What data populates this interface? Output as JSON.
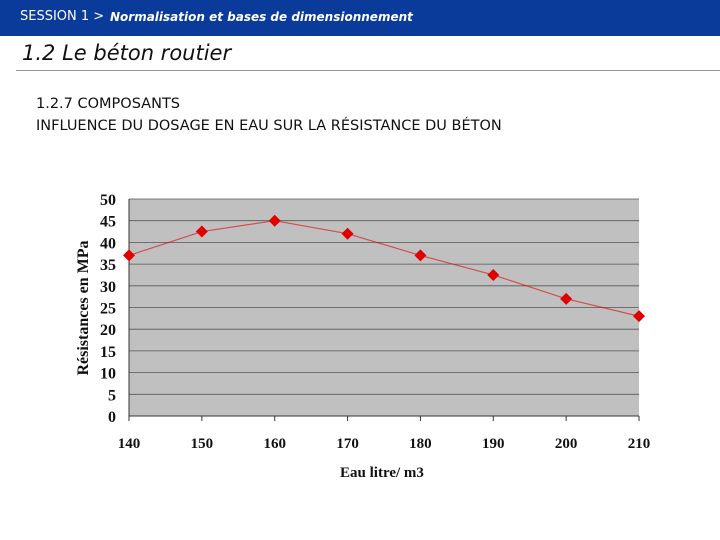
{
  "header": {
    "session": "SESSION 1 >",
    "subtitle": "Normalisation et bases de dimensionnement",
    "title": "1.2 Le béton routier"
  },
  "heading": [
    "1.2.7 COMPOSANTS",
    "INFLUENCE DU DOSAGE EN EAU SUR LA RÉSISTANCE DU BÉTON"
  ],
  "chart_data": {
    "type": "line",
    "x_label": "Eau litre/ m3",
    "y_label": "Résistances en MPa",
    "x": [
      140,
      150,
      160,
      170,
      180,
      190,
      200,
      210
    ],
    "series": [
      {
        "name": "Résistance",
        "color": "#e00000",
        "values": [
          37,
          42.5,
          45,
          42,
          37,
          32.5,
          27,
          23
        ]
      }
    ],
    "xlim": [
      140,
      210
    ],
    "xticks": [
      140,
      150,
      160,
      170,
      180,
      190,
      200,
      210
    ],
    "ylim": [
      0,
      50
    ],
    "yticks": [
      0,
      5,
      10,
      15,
      20,
      25,
      30,
      35,
      40,
      45,
      50
    ],
    "grid": true
  }
}
